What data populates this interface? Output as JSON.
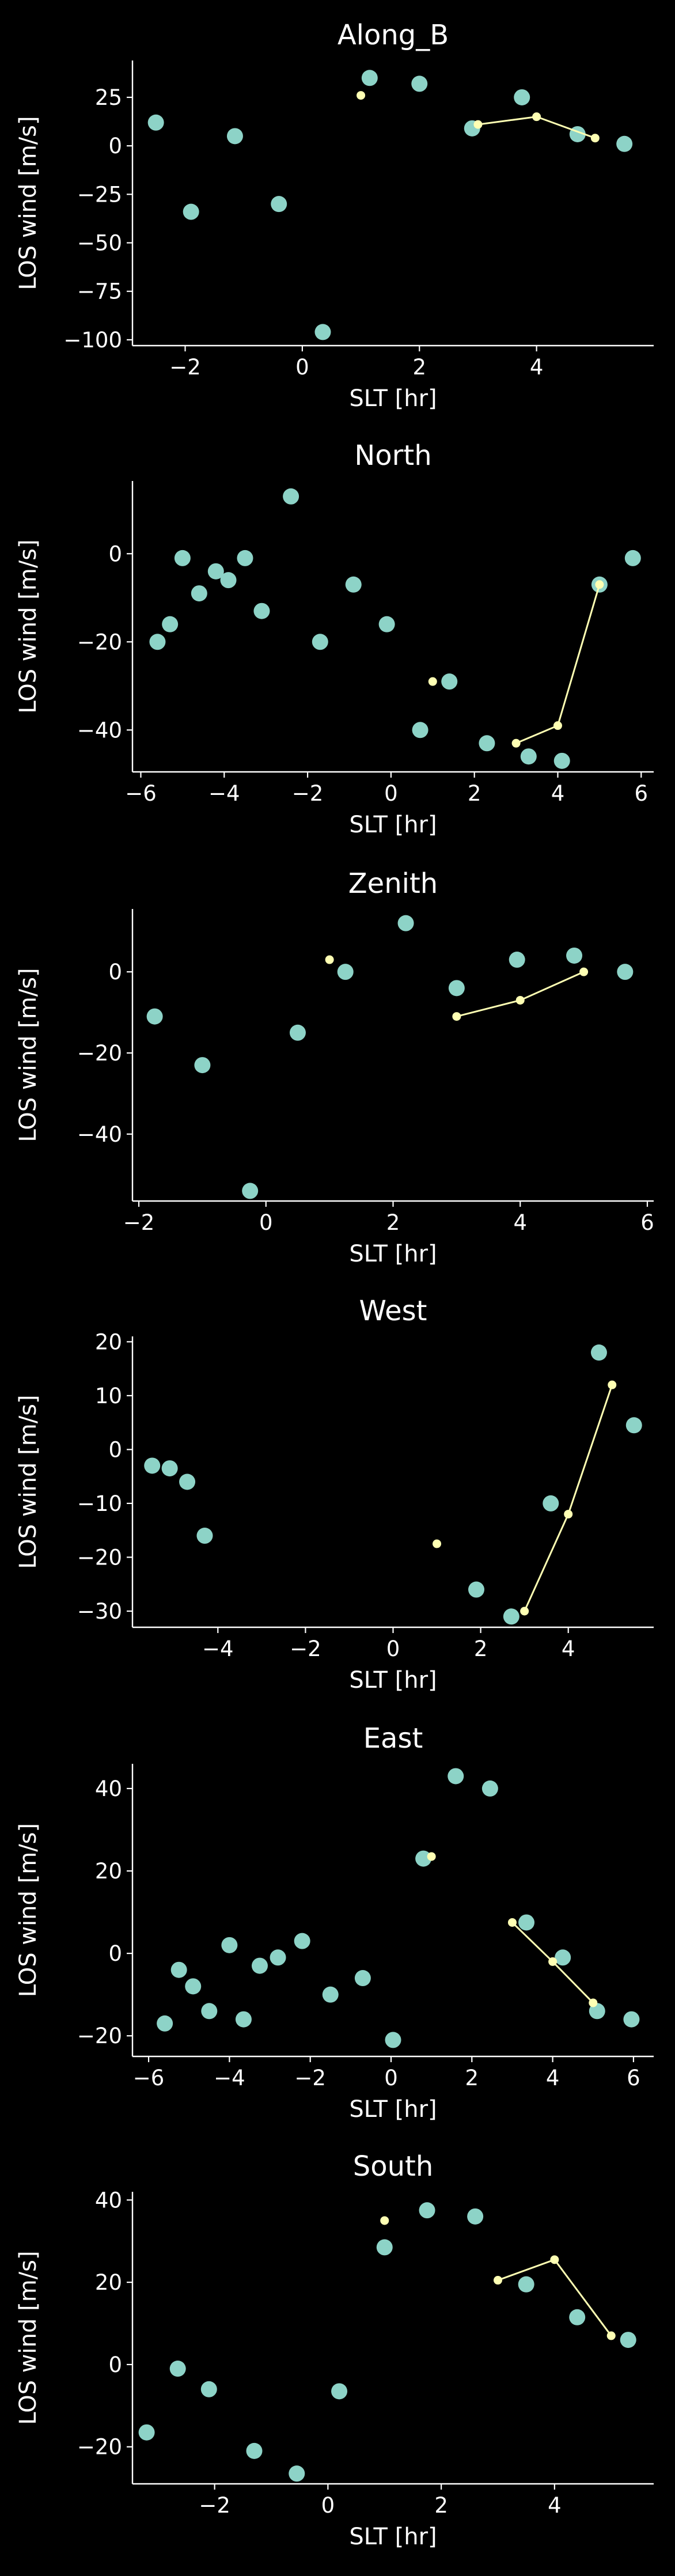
{
  "colors": {
    "background": "#000000",
    "axes": "#ffffff",
    "text": "#ffffff",
    "scatter": "#8dd3c7",
    "line": "#feffb3"
  },
  "chart_data": [
    {
      "type": "scatter",
      "title": "Along_B",
      "xlabel": "SLT [hr]",
      "ylabel": "LOS wind [m/s]",
      "xlim": [
        -2.9,
        6.0
      ],
      "ylim": [
        -103,
        44
      ],
      "xticks": [
        -2,
        0,
        2,
        4
      ],
      "yticks": [
        -100,
        -75,
        -50,
        -25,
        0,
        25
      ],
      "scatter": {
        "x": [
          -2.5,
          -1.9,
          -1.15,
          -0.4,
          0.35,
          1.15,
          2.0,
          2.9,
          3.75,
          4.7,
          5.5
        ],
        "y": [
          12,
          -34,
          5,
          -30,
          -96,
          35,
          32,
          9,
          25,
          6,
          1
        ]
      },
      "line": {
        "x": [
          3.0,
          4.0,
          5.0
        ],
        "y": [
          11,
          15,
          4
        ]
      },
      "extra_points": {
        "x": [
          1.0
        ],
        "y": [
          26
        ]
      }
    },
    {
      "type": "scatter",
      "title": "North",
      "xlabel": "SLT [hr]",
      "ylabel": "LOS wind [m/s]",
      "xlim": [
        -6.2,
        6.3
      ],
      "ylim": [
        -49.5,
        16.5
      ],
      "xticks": [
        -6,
        -4,
        -2,
        0,
        2,
        4,
        6
      ],
      "yticks": [
        -40,
        -20,
        0
      ],
      "scatter": {
        "x": [
          -5.6,
          -5.3,
          -5.0,
          -4.6,
          -4.2,
          -3.9,
          -3.5,
          -3.1,
          -2.4,
          -1.7,
          -0.9,
          -0.1,
          0.7,
          1.4,
          2.3,
          3.3,
          4.1,
          5.0,
          5.8
        ],
        "y": [
          -20,
          -16,
          -1,
          -9,
          -4,
          -6,
          -1,
          -13,
          13,
          -20,
          -7,
          -16,
          -40,
          -29,
          -43,
          -46,
          -47,
          -7,
          -1
        ]
      },
      "line": {
        "x": [
          3.0,
          4.0,
          5.0
        ],
        "y": [
          -43,
          -39,
          -7
        ]
      },
      "extra_points": {
        "x": [
          1.0
        ],
        "y": [
          -29
        ]
      }
    },
    {
      "type": "scatter",
      "title": "Zenith",
      "xlabel": "SLT [hr]",
      "ylabel": "LOS wind [m/s]",
      "xlim": [
        -2.1,
        6.1
      ],
      "ylim": [
        -56.5,
        15.5
      ],
      "xticks": [
        -2,
        0,
        2,
        4,
        6
      ],
      "yticks": [
        -40,
        -20,
        0
      ],
      "scatter": {
        "x": [
          -1.75,
          -1.0,
          -0.25,
          0.5,
          1.25,
          2.2,
          3.0,
          3.95,
          4.85,
          5.65
        ],
        "y": [
          -11,
          -23,
          -54,
          -15,
          0,
          12,
          -4,
          3,
          4,
          0
        ]
      },
      "line": {
        "x": [
          3.0,
          4.0,
          5.0
        ],
        "y": [
          -11,
          -7,
          0
        ]
      },
      "extra_points": {
        "x": [
          1.0
        ],
        "y": [
          3
        ]
      }
    },
    {
      "type": "scatter",
      "title": "West",
      "xlabel": "SLT [hr]",
      "ylabel": "LOS wind [m/s]",
      "xlim": [
        -5.95,
        5.95
      ],
      "ylim": [
        -33,
        21
      ],
      "xticks": [
        -4,
        -2,
        0,
        2,
        4
      ],
      "yticks": [
        -30,
        -20,
        -10,
        0,
        10,
        20
      ],
      "scatter": {
        "x": [
          -5.5,
          -5.1,
          -4.7,
          -4.3,
          1.9,
          2.7,
          3.6,
          4.7,
          5.5
        ],
        "y": [
          -3,
          -3.5,
          -6,
          -16,
          -26,
          -31,
          -10,
          18,
          4.5
        ]
      },
      "line": {
        "x": [
          3.0,
          4.0,
          5.0
        ],
        "y": [
          -30,
          -12,
          12
        ]
      },
      "extra_points": {
        "x": [
          1.0
        ],
        "y": [
          -17.5
        ]
      }
    },
    {
      "type": "scatter",
      "title": "East",
      "xlabel": "SLT [hr]",
      "ylabel": "LOS wind [m/s]",
      "xlim": [
        -6.4,
        6.5
      ],
      "ylim": [
        -25,
        46
      ],
      "xticks": [
        -6,
        -4,
        -2,
        0,
        2,
        4,
        6
      ],
      "yticks": [
        -20,
        0,
        20,
        40
      ],
      "scatter": {
        "x": [
          -5.6,
          -5.25,
          -4.9,
          -4.5,
          -4.0,
          -3.65,
          -3.25,
          -2.8,
          -2.2,
          -1.5,
          -0.7,
          0.05,
          0.8,
          1.6,
          2.45,
          3.35,
          4.25,
          5.1,
          5.95
        ],
        "y": [
          -17,
          -4,
          -8,
          -14,
          2,
          -16,
          -3,
          -1,
          3,
          -10,
          -6,
          -21,
          23,
          43,
          40,
          7.5,
          -1,
          -14,
          -16
        ]
      },
      "line": {
        "x": [
          3.0,
          4.0,
          5.0
        ],
        "y": [
          7.5,
          -2,
          -12
        ]
      },
      "extra_points": {
        "x": [
          1.0
        ],
        "y": [
          23.5
        ]
      }
    },
    {
      "type": "scatter",
      "title": "South",
      "xlabel": "SLT [hr]",
      "ylabel": "LOS wind [m/s]",
      "xlim": [
        -3.45,
        5.75
      ],
      "ylim": [
        -29,
        42
      ],
      "xticks": [
        -2,
        0,
        2,
        4
      ],
      "yticks": [
        -20,
        0,
        20,
        40
      ],
      "scatter": {
        "x": [
          -3.2,
          -2.65,
          -2.1,
          -1.3,
          -0.55,
          0.2,
          1.0,
          1.75,
          2.6,
          3.5,
          4.4,
          5.3
        ],
        "y": [
          -16.5,
          -1,
          -6,
          -21,
          -26.5,
          -6.5,
          28.5,
          37.5,
          36,
          19.5,
          11.5,
          6
        ]
      },
      "line": {
        "x": [
          3.0,
          4.0,
          5.0
        ],
        "y": [
          20.5,
          25.5,
          7
        ]
      },
      "extra_points": {
        "x": [
          1.0
        ],
        "y": [
          35
        ]
      }
    }
  ]
}
